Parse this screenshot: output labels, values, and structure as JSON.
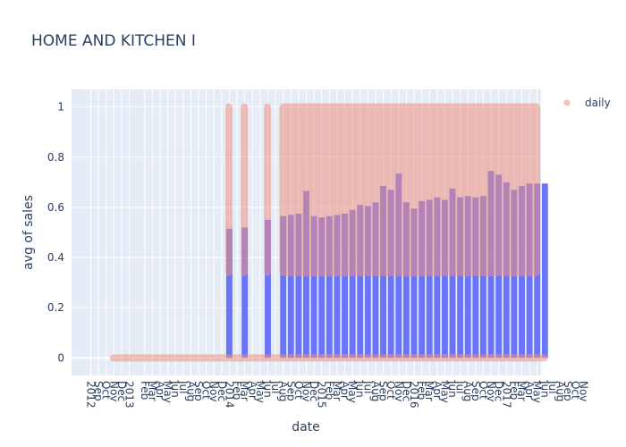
{
  "chart_data": {
    "type": "bar",
    "title": "HOME AND KITCHEN I",
    "xlabel": "date",
    "ylabel": "avg of sales",
    "ylim": [
      -0.07,
      1.07
    ],
    "y_ticks": [
      0,
      0.2,
      0.4,
      0.6,
      0.8,
      1
    ],
    "y_tick_labels": [
      "0",
      "0.2",
      "0.4",
      "0.6",
      "0.8",
      "1"
    ],
    "grid": true,
    "legend_position": "top-right",
    "x_range_months": [
      "2012-11",
      "2017-11"
    ],
    "x_tick_labels": [
      {
        "m": "2013-01",
        "t": "2012"
      },
      {
        "m": "2013-02",
        "t": "Sep"
      },
      {
        "m": "2013-03",
        "t": "Oct"
      },
      {
        "m": "2013-04",
        "t": "Nov"
      },
      {
        "m": "2013-05",
        "t": "Dec"
      },
      {
        "m": "2013-06",
        "t": "2013"
      },
      {
        "m": "2013-08",
        "t": "Feb"
      },
      {
        "m": "2013-09",
        "t": "Mar"
      },
      {
        "m": "2013-10",
        "t": "Apr"
      },
      {
        "m": "2013-11",
        "t": "May"
      },
      {
        "m": "2013-12",
        "t": "Jun"
      },
      {
        "m": "2014-01",
        "t": "Jul"
      },
      {
        "m": "2014-02",
        "t": "Aug"
      },
      {
        "m": "2014-03",
        "t": "Sep"
      },
      {
        "m": "2014-04",
        "t": "Oct"
      },
      {
        "m": "2014-05",
        "t": "Nov"
      },
      {
        "m": "2014-06",
        "t": "Dec"
      },
      {
        "m": "2014-07",
        "t": "2014"
      },
      {
        "m": "2014-08",
        "t": "Feb"
      },
      {
        "m": "2014-09",
        "t": "Mar"
      },
      {
        "m": "2014-10",
        "t": "Apr"
      },
      {
        "m": "2014-11",
        "t": "May"
      },
      {
        "m": "2014-12",
        "t": "Jun"
      },
      {
        "m": "2015-01",
        "t": "Jul"
      },
      {
        "m": "2015-02",
        "t": "Aug"
      },
      {
        "m": "2015-03",
        "t": "Sep"
      },
      {
        "m": "2015-04",
        "t": "Oct"
      },
      {
        "m": "2015-05",
        "t": "Nov"
      },
      {
        "m": "2015-06",
        "t": "Dec"
      },
      {
        "m": "2015-07",
        "t": "2015"
      },
      {
        "m": "2015-08",
        "t": "Feb"
      },
      {
        "m": "2015-09",
        "t": "Mar"
      },
      {
        "m": "2015-10",
        "t": "Apr"
      },
      {
        "m": "2015-11",
        "t": "May"
      },
      {
        "m": "2015-12",
        "t": "Jun"
      },
      {
        "m": "2016-01",
        "t": "Jul"
      },
      {
        "m": "2016-02",
        "t": "Aug"
      },
      {
        "m": "2016-03",
        "t": "Sep"
      },
      {
        "m": "2016-04",
        "t": "Oct"
      },
      {
        "m": "2016-05",
        "t": "Nov"
      },
      {
        "m": "2016-06",
        "t": "Dec"
      },
      {
        "m": "2016-07",
        "t": "2016"
      },
      {
        "m": "2016-08",
        "t": "Feb"
      },
      {
        "m": "2016-09",
        "t": "Mar"
      },
      {
        "m": "2016-10",
        "t": "Apr"
      },
      {
        "m": "2016-11",
        "t": "May"
      },
      {
        "m": "2016-12",
        "t": "Jun"
      },
      {
        "m": "2017-01",
        "t": "Jul"
      },
      {
        "m": "2017-02",
        "t": "Aug"
      },
      {
        "m": "2017-03",
        "t": "Sep"
      },
      {
        "m": "2017-04",
        "t": "Oct"
      },
      {
        "m": "2017-05",
        "t": "Nov"
      },
      {
        "m": "2017-06",
        "t": "Dec"
      },
      {
        "m": "2017-07",
        "t": "2017"
      },
      {
        "m": "2017-08",
        "t": "Feb"
      },
      {
        "m": "2017-09",
        "t": "Mar"
      },
      {
        "m": "2017-10",
        "t": "Apr"
      },
      {
        "m": "2017-11",
        "t": "May"
      },
      {
        "m": "2017-12",
        "t": "Jun"
      },
      {
        "m": "2018-01",
        "t": "Jul"
      },
      {
        "m": "2018-02",
        "t": "Aug"
      },
      {
        "m": "2018-03",
        "t": "Sep"
      },
      {
        "m": "2018-04",
        "t": "Oct"
      },
      {
        "m": "2018-05",
        "t": "Nov"
      }
    ],
    "bars": {
      "color": "#636efa",
      "opacity": 0.95,
      "data": [
        {
          "x": "2014-07",
          "y": 0.515
        },
        {
          "x": "2014-09",
          "y": 0.52
        },
        {
          "x": "2014-12",
          "y": 0.55
        },
        {
          "x": "2015-02",
          "y": 0.565
        },
        {
          "x": "2015-03",
          "y": 0.57
        },
        {
          "x": "2015-04",
          "y": 0.575
        },
        {
          "x": "2015-05",
          "y": 0.665
        },
        {
          "x": "2015-06",
          "y": 0.565
        },
        {
          "x": "2015-07",
          "y": 0.56
        },
        {
          "x": "2015-08",
          "y": 0.565
        },
        {
          "x": "2015-09",
          "y": 0.57
        },
        {
          "x": "2015-10",
          "y": 0.575
        },
        {
          "x": "2015-11",
          "y": 0.59
        },
        {
          "x": "2015-12",
          "y": 0.61
        },
        {
          "x": "2016-01",
          "y": 0.605
        },
        {
          "x": "2016-02",
          "y": 0.62
        },
        {
          "x": "2016-03",
          "y": 0.685
        },
        {
          "x": "2016-04",
          "y": 0.67
        },
        {
          "x": "2016-05",
          "y": 0.735
        },
        {
          "x": "2016-06",
          "y": 0.62
        },
        {
          "x": "2016-07",
          "y": 0.595
        },
        {
          "x": "2016-08",
          "y": 0.625
        },
        {
          "x": "2016-09",
          "y": 0.63
        },
        {
          "x": "2016-10",
          "y": 0.64
        },
        {
          "x": "2016-11",
          "y": 0.63
        },
        {
          "x": "2016-12",
          "y": 0.675
        },
        {
          "x": "2017-01",
          "y": 0.64
        },
        {
          "x": "2017-02",
          "y": 0.645
        },
        {
          "x": "2017-03",
          "y": 0.64
        },
        {
          "x": "2017-04",
          "y": 0.645
        },
        {
          "x": "2017-05",
          "y": 0.745
        },
        {
          "x": "2017-06",
          "y": 0.73
        },
        {
          "x": "2017-07",
          "y": 0.7
        },
        {
          "x": "2017-08",
          "y": 0.67
        },
        {
          "x": "2017-09",
          "y": 0.685
        },
        {
          "x": "2017-10",
          "y": 0.695
        },
        {
          "x": "2017-11",
          "y": 0.695
        },
        {
          "x": "2017-12",
          "y": 0.695
        }
      ]
    },
    "series": [
      {
        "name": "daily",
        "type": "scatter",
        "color": "#ef8f82",
        "opacity": 0.55,
        "baseline": {
          "start": "2013-04",
          "end": "2017-12",
          "y": 0
        },
        "bands": [
          {
            "start": "2014-07",
            "end": "2014-08",
            "ymin": 0.34,
            "ymax": 1.0
          },
          {
            "start": "2014-09",
            "end": "2014-10",
            "ymin": 0.34,
            "ymax": 1.0
          },
          {
            "start": "2014-12",
            "end": "2015-01",
            "ymin": 0.34,
            "ymax": 1.0
          },
          {
            "start": "2015-02",
            "end": "2017-12",
            "ymin": 0.34,
            "ymax": 1.0
          }
        ]
      }
    ]
  }
}
